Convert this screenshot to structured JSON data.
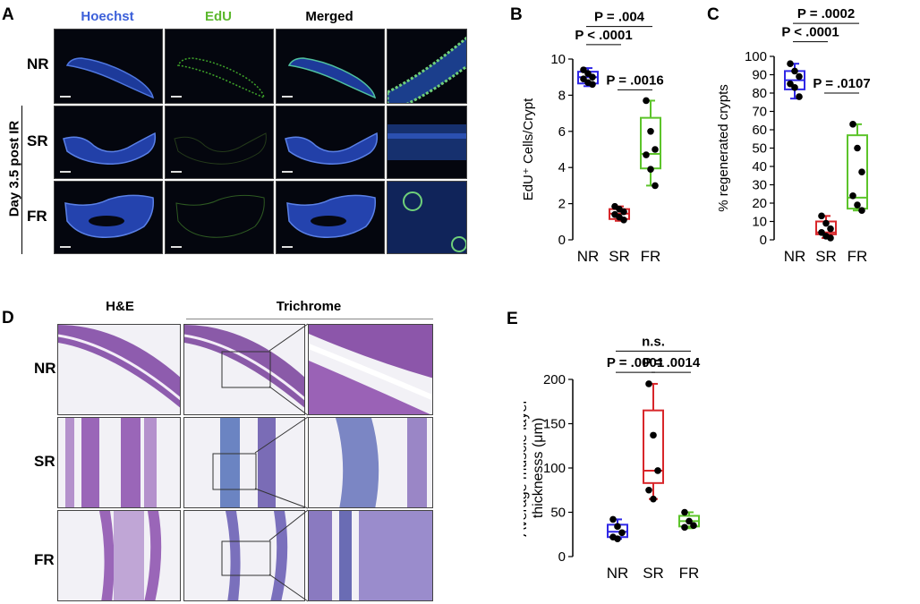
{
  "panelA": {
    "letter": "A",
    "columns": [
      "Hoechst",
      "EdU",
      "Merged"
    ],
    "column_colors": [
      "#3b5fd9",
      "#5cb82e",
      "#000000"
    ],
    "rows": [
      "NR",
      "SR",
      "FR"
    ],
    "side_label": "Day 3.5 post IR"
  },
  "panelD": {
    "letter": "D",
    "columns": [
      "H&E",
      "Trichrome"
    ],
    "rows": [
      "NR",
      "SR",
      "FR"
    ]
  },
  "chart_data": [
    {
      "panel": "B",
      "type": "box",
      "categories": [
        "NR",
        "SR",
        "FR"
      ],
      "ylabel": "EdU⁺ Cells/Crypt",
      "ylim": [
        0,
        10
      ],
      "yticks": [
        0,
        2,
        4,
        6,
        8,
        10
      ],
      "colors": [
        "#2f27e6",
        "#d8262a",
        "#5cc42a"
      ],
      "boxes": [
        {
          "min": 8.5,
          "q1": 8.65,
          "median": 9.0,
          "q3": 9.3,
          "max": 9.5
        },
        {
          "min": 1.05,
          "q1": 1.15,
          "median": 1.45,
          "q3": 1.7,
          "max": 1.85
        },
        {
          "min": 3.0,
          "q1": 3.95,
          "median": 4.75,
          "q3": 6.75,
          "max": 7.7
        }
      ],
      "points": [
        [
          9.4,
          9.2,
          9.0,
          8.9,
          8.7,
          8.6
        ],
        [
          1.85,
          1.7,
          1.55,
          1.4,
          1.25,
          1.1
        ],
        [
          7.7,
          6.0,
          5.0,
          4.7,
          3.9,
          3.0
        ]
      ],
      "annotations": [
        {
          "text": "P = .004",
          "from": "NR",
          "to": "FR",
          "y": 11.8
        },
        {
          "text": "P < .0001",
          "from": "NR",
          "to": "SR",
          "y": 10.8
        },
        {
          "text": "P = .0016",
          "from": "SR",
          "to": "FR",
          "y": 8.3
        }
      ]
    },
    {
      "panel": "C",
      "type": "box",
      "categories": [
        "NR",
        "SR",
        "FR"
      ],
      "ylabel": "% regenerated crypts",
      "ylim": [
        0,
        100
      ],
      "yticks": [
        0,
        10,
        20,
        30,
        40,
        50,
        60,
        70,
        80,
        90,
        100
      ],
      "colors": [
        "#2f27e6",
        "#d8262a",
        "#5cc42a"
      ],
      "boxes": [
        {
          "min": 77,
          "q1": 82,
          "median": 87,
          "q3": 92,
          "max": 96
        },
        {
          "min": 1,
          "q1": 3,
          "median": 4,
          "q3": 10,
          "max": 13
        },
        {
          "min": 16,
          "q1": 17,
          "median": 23,
          "q3": 57,
          "max": 63
        }
      ],
      "points": [
        [
          96,
          92,
          89,
          85,
          83,
          78
        ],
        [
          13,
          9,
          6,
          4,
          2,
          1
        ],
        [
          63,
          50,
          37,
          24,
          19,
          16
        ]
      ],
      "annotations": [
        {
          "text": "P = .0002",
          "from": "NR",
          "to": "FR",
          "y": 118
        },
        {
          "text": "P < .0001",
          "from": "NR",
          "to": "SR",
          "y": 108
        },
        {
          "text": "P = .0107",
          "from": "SR",
          "to": "FR",
          "y": 80
        }
      ]
    },
    {
      "panel": "E",
      "type": "box",
      "categories": [
        "NR",
        "SR",
        "FR"
      ],
      "ylabel": "Average muscle layer thicknesss (μm)",
      "ylim": [
        0,
        200
      ],
      "yticks": [
        0,
        50,
        100,
        150,
        200
      ],
      "colors": [
        "#2f27e6",
        "#d8262a",
        "#5cc42a"
      ],
      "boxes": [
        {
          "min": 20,
          "q1": 22,
          "median": 28,
          "q3": 36,
          "max": 42
        },
        {
          "min": 65,
          "q1": 83,
          "median": 97,
          "q3": 165,
          "max": 195
        },
        {
          "min": 32,
          "q1": 34,
          "median": 40,
          "q3": 46,
          "max": 50
        }
      ],
      "points": [
        [
          42,
          34,
          27,
          22,
          20
        ],
        [
          195,
          137,
          97,
          75,
          65
        ],
        [
          50,
          40,
          35,
          33
        ]
      ],
      "annotations": [
        {
          "text": "n.s.",
          "from": "NR",
          "to": "FR",
          "y": 232
        },
        {
          "text": "P = .0001",
          "from": "NR",
          "to": "SR",
          "y": 208
        },
        {
          "text": "P = .0014",
          "from": "SR",
          "to": "FR",
          "y": 208
        }
      ]
    }
  ]
}
